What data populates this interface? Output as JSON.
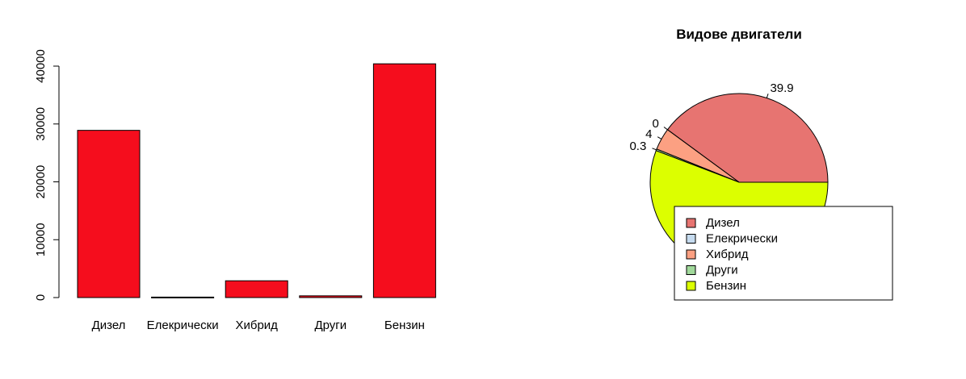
{
  "chart_data": [
    {
      "type": "bar",
      "title": "",
      "xlabel": "",
      "ylabel": "",
      "categories": [
        "Дизел",
        "Елекрически",
        "Хибрид",
        "Други",
        "Бензин"
      ],
      "values": [
        28900,
        80,
        2900,
        300,
        40400
      ],
      "ylim": [
        0,
        40000
      ],
      "yticks": [
        "0",
        "10000",
        "20000",
        "30000",
        "40000"
      ],
      "bar_color": "#f50d1d",
      "grid": false
    },
    {
      "type": "pie",
      "title": "Видове двигатели",
      "categories": [
        "Дизел",
        "Елекрически",
        "Хибрид",
        "Други",
        "Бензин"
      ],
      "values": [
        39.9,
        0,
        4,
        0.3,
        55.8
      ],
      "slice_labels": [
        "39.9",
        "0",
        "4",
        "0.3",
        ""
      ],
      "colors": [
        "#e77471",
        "#c6dbef",
        "#fca082",
        "#a1d99b",
        "#dcff00"
      ],
      "legend": {
        "position": "bottom-right",
        "entries": [
          "Дизел",
          "Елекрически",
          "Хибрид",
          "Други",
          "Бензин"
        ]
      }
    }
  ]
}
